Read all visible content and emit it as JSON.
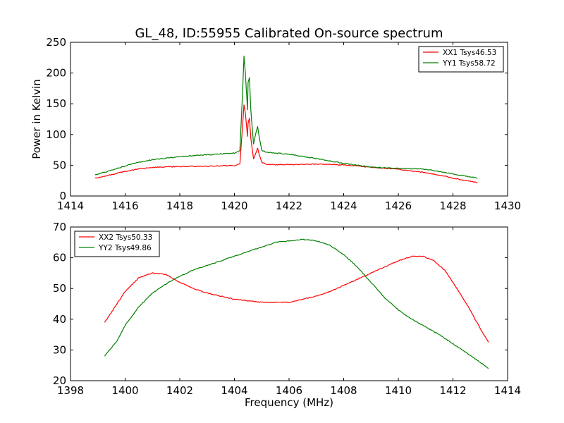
{
  "chart_data": [
    {
      "type": "line",
      "title": "GL_48, ID:55955 Calibrated On-source spectrum",
      "xlabel": "",
      "ylabel": "Power in Kelvin",
      "xlim": [
        1414,
        1430
      ],
      "ylim": [
        0,
        250
      ],
      "xticks": [
        "1414",
        "1416",
        "1418",
        "1420",
        "1422",
        "1424",
        "1426",
        "1428",
        "1430"
      ],
      "yticks": [
        "0",
        "50",
        "100",
        "150",
        "200",
        "250"
      ],
      "legend_position": "top-right",
      "series": [
        {
          "name": "XX1 Tsys46.53",
          "color": "#ff0000",
          "x": [
            1414.9,
            1415.5,
            1416.0,
            1416.5,
            1417.0,
            1418.0,
            1419.0,
            1420.0,
            1420.2,
            1420.3,
            1420.35,
            1420.4,
            1420.48,
            1420.5,
            1420.55,
            1420.6,
            1420.7,
            1420.8,
            1420.85,
            1420.9,
            1421.0,
            1421.2,
            1422.0,
            1423.0,
            1424.0,
            1425.0,
            1426.0,
            1427.0,
            1427.5,
            1428.0,
            1428.9
          ],
          "y": [
            29,
            35,
            40,
            44,
            46.5,
            48,
            48.5,
            49.5,
            52,
            115,
            148,
            135,
            97,
            118,
            127,
            95,
            60,
            72,
            78,
            68,
            55,
            51,
            51,
            52,
            50.5,
            47,
            43.5,
            38,
            34,
            29,
            22
          ]
        },
        {
          "name": "YY1 Tsys58.72",
          "color": "#008000",
          "x": [
            1414.9,
            1415.5,
            1416.0,
            1416.5,
            1417.0,
            1418.0,
            1419.0,
            1420.0,
            1420.2,
            1420.3,
            1420.35,
            1420.4,
            1420.48,
            1420.5,
            1420.55,
            1420.6,
            1420.7,
            1420.8,
            1420.85,
            1420.9,
            1421.0,
            1421.2,
            1422.0,
            1423.0,
            1424.0,
            1425.0,
            1426.0,
            1427.0,
            1427.5,
            1428.0,
            1428.9
          ],
          "y": [
            34,
            42,
            49,
            55,
            59,
            64,
            67,
            70,
            74,
            170,
            227,
            200,
            140,
            185,
            192,
            140,
            85,
            105,
            113,
            98,
            74,
            71,
            68,
            61,
            53,
            47,
            45,
            43.5,
            40,
            36,
            29
          ]
        }
      ]
    },
    {
      "type": "line",
      "title": "",
      "xlabel": "Frequency (MHz)",
      "ylabel": "",
      "xlim": [
        1398,
        1414
      ],
      "ylim": [
        20,
        70
      ],
      "xticks": [
        "1398",
        "1400",
        "1402",
        "1404",
        "1406",
        "1408",
        "1410",
        "1412",
        "1414"
      ],
      "yticks": [
        "20",
        "30",
        "40",
        "50",
        "60",
        "70"
      ],
      "legend_position": "top-left",
      "series": [
        {
          "name": "XX2 Tsys50.33",
          "color": "#ff0000",
          "x": [
            1399.25,
            1399.7,
            1400.0,
            1400.5,
            1401.0,
            1401.5,
            1402.0,
            1402.5,
            1403.0,
            1403.5,
            1404.0,
            1404.5,
            1405.0,
            1405.5,
            1406.0,
            1406.5,
            1407.0,
            1407.5,
            1408.0,
            1408.5,
            1409.0,
            1409.5,
            1410.0,
            1410.5,
            1410.9,
            1411.3,
            1411.7,
            1412.0,
            1412.5,
            1413.0,
            1413.3
          ],
          "y": [
            39,
            45,
            49,
            53.5,
            55,
            54.5,
            52,
            50,
            48.5,
            47.5,
            46.5,
            46,
            45.5,
            45.5,
            45.5,
            46.5,
            47.5,
            49,
            51,
            53,
            55,
            57,
            59,
            60.5,
            60.5,
            59,
            56,
            52,
            45,
            37,
            32.5
          ]
        },
        {
          "name": "YY2 Tsys49.86",
          "color": "#008000",
          "x": [
            1399.25,
            1399.7,
            1400.0,
            1400.5,
            1401.0,
            1401.5,
            1402.0,
            1402.5,
            1403.0,
            1403.5,
            1404.0,
            1404.5,
            1405.0,
            1405.5,
            1406.0,
            1406.5,
            1407.0,
            1407.5,
            1408.0,
            1408.5,
            1409.0,
            1409.5,
            1410.0,
            1410.5,
            1411.0,
            1411.5,
            1412.0,
            1412.5,
            1413.0,
            1413.3
          ],
          "y": [
            28,
            33,
            38,
            44,
            48.5,
            51.5,
            54,
            56,
            57.5,
            59,
            60.5,
            62,
            63.5,
            65,
            65.5,
            66,
            65.5,
            64,
            61,
            57,
            52,
            47,
            43,
            40,
            37.5,
            35,
            32,
            29,
            26,
            24
          ]
        }
      ]
    }
  ]
}
